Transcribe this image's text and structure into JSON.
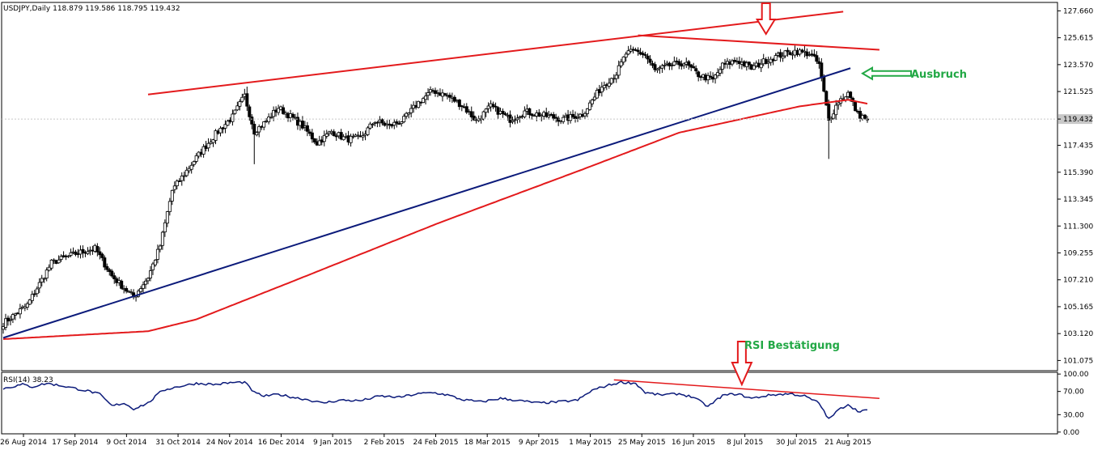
{
  "colors": {
    "background": "#ffffff",
    "frame": "#000000",
    "candle": "#000000",
    "bull_body": "#ffffff",
    "trendline": "#e31a1c",
    "channel_line": "#0b1a7a",
    "moving_average": "#e31a1c",
    "rsi_line": "#0b1a7a",
    "annotation": "#22a845",
    "arrow_red": "#e31a1c",
    "arrow_green": "#22a845",
    "price_badge": "#c8c8c8"
  },
  "chart_data": [
    {
      "type": "candlestick",
      "header": "USDJPY,Daily  118.879 119.586 118.795 119.432",
      "xlabel": "",
      "ylabel": "",
      "x_ticks": [
        "26 Aug 2014",
        "17 Sep 2014",
        "9 Oct 2014",
        "31 Oct 2014",
        "24 Nov 2014",
        "16 Dec 2014",
        "9 Jan 2015",
        "2 Feb 2015",
        "24 Feb 2015",
        "18 Mar 2015",
        "9 Apr 2015",
        "1 May 2015",
        "25 May 2015",
        "16 Jun 2015",
        "8 Jul 2015",
        "30 Jul 2015",
        "21 Aug 2015"
      ],
      "y_ticks": [
        127.66,
        125.615,
        123.57,
        121.525,
        119.432,
        117.435,
        115.39,
        113.345,
        111.3,
        109.255,
        107.21,
        105.165,
        103.12,
        101.075
      ],
      "y_tick_labels": [
        "127.660",
        "125.615",
        "123.570",
        "121.525",
        "119.432",
        "117.435",
        "115.390",
        "113.345",
        "111.300",
        "109.255",
        "107.210",
        "105.165",
        "103.120",
        "101.075"
      ],
      "current_price": 119.432,
      "ylim": [
        100.3,
        128.3
      ],
      "grid": false,
      "close_anchors": [
        [
          0,
          103.9
        ],
        [
          10,
          105.3
        ],
        [
          20,
          108.5
        ],
        [
          30,
          109.2
        ],
        [
          38,
          109.6
        ],
        [
          45,
          107.5
        ],
        [
          50,
          106.6
        ],
        [
          54,
          105.9
        ],
        [
          60,
          107.4
        ],
        [
          65,
          109.8
        ],
        [
          70,
          114.0
        ],
        [
          80,
          116.5
        ],
        [
          88,
          118.3
        ],
        [
          95,
          119.6
        ],
        [
          100,
          121.2
        ],
        [
          104,
          118.5
        ],
        [
          108,
          119.1
        ],
        [
          114,
          120.3
        ],
        [
          120,
          119.5
        ],
        [
          124,
          118.9
        ],
        [
          130,
          117.6
        ],
        [
          136,
          118.5
        ],
        [
          142,
          117.9
        ],
        [
          148,
          118.0
        ],
        [
          154,
          119.3
        ],
        [
          160,
          118.9
        ],
        [
          166,
          119.4
        ],
        [
          172,
          120.7
        ],
        [
          178,
          121.6
        ],
        [
          184,
          121.2
        ],
        [
          190,
          120.5
        ],
        [
          196,
          119.3
        ],
        [
          202,
          120.4
        ],
        [
          210,
          119.4
        ],
        [
          216,
          120.0
        ],
        [
          224,
          119.7
        ],
        [
          232,
          119.4
        ],
        [
          240,
          119.8
        ],
        [
          248,
          121.9
        ],
        [
          254,
          122.9
        ],
        [
          258,
          124.4
        ],
        [
          262,
          124.6
        ],
        [
          266,
          124.3
        ],
        [
          270,
          123.1
        ],
        [
          276,
          123.5
        ],
        [
          282,
          123.7
        ],
        [
          288,
          122.8
        ],
        [
          294,
          122.4
        ],
        [
          298,
          123.5
        ],
        [
          304,
          123.9
        ],
        [
          310,
          123.3
        ],
        [
          316,
          123.9
        ],
        [
          322,
          124.3
        ],
        [
          328,
          124.6
        ],
        [
          334,
          124.4
        ],
        [
          338,
          123.6
        ],
        [
          342,
          119.3
        ],
        [
          346,
          120.8
        ],
        [
          350,
          121.4
        ],
        [
          354,
          119.8
        ],
        [
          358,
          119.43
        ]
      ],
      "ma_anchors": [
        [
          0,
          102.7
        ],
        [
          60,
          103.3
        ],
        [
          80,
          104.2
        ],
        [
          120,
          107.1
        ],
        [
          180,
          111.5
        ],
        [
          240,
          115.6
        ],
        [
          280,
          118.4
        ],
        [
          330,
          120.4
        ],
        [
          350,
          120.9
        ],
        [
          358,
          120.6
        ]
      ],
      "lines": [
        {
          "kind": "resistance",
          "x": [
            60,
            348
          ],
          "y": [
            121.3,
            127.6
          ]
        },
        {
          "kind": "top",
          "x": [
            263,
            363
          ],
          "y": [
            125.8,
            124.7
          ]
        },
        {
          "kind": "support",
          "x": [
            0,
            351
          ],
          "y": [
            102.8,
            123.3
          ]
        }
      ],
      "annotations": [
        {
          "text": "Ausbruch",
          "arrow": "left",
          "x": 356,
          "y": 122.9
        },
        {
          "text": "",
          "arrow": "down",
          "x": 316,
          "y": 127.6
        }
      ]
    },
    {
      "type": "line",
      "header": "RSI(14) 38.23",
      "xlabel": "",
      "ylabel": "",
      "y_ticks": [
        100,
        70,
        30,
        0
      ],
      "y_tick_labels": [
        "100.00",
        "70.00",
        "30.00",
        "0.00"
      ],
      "ylim": [
        -3,
        103
      ],
      "grid": false,
      "anchors": [
        [
          0,
          75
        ],
        [
          8,
          82
        ],
        [
          12,
          78
        ],
        [
          18,
          84
        ],
        [
          24,
          80
        ],
        [
          30,
          75
        ],
        [
          36,
          70
        ],
        [
          40,
          65
        ],
        [
          45,
          45
        ],
        [
          50,
          50
        ],
        [
          54,
          40
        ],
        [
          60,
          50
        ],
        [
          66,
          72
        ],
        [
          72,
          78
        ],
        [
          80,
          84
        ],
        [
          88,
          82
        ],
        [
          94,
          85
        ],
        [
          100,
          86
        ],
        [
          104,
          68
        ],
        [
          108,
          62
        ],
        [
          114,
          65
        ],
        [
          120,
          60
        ],
        [
          126,
          56
        ],
        [
          132,
          50
        ],
        [
          140,
          55
        ],
        [
          148,
          54
        ],
        [
          156,
          62
        ],
        [
          164,
          60
        ],
        [
          172,
          66
        ],
        [
          178,
          68
        ],
        [
          184,
          64
        ],
        [
          190,
          56
        ],
        [
          198,
          52
        ],
        [
          206,
          58
        ],
        [
          214,
          54
        ],
        [
          222,
          50
        ],
        [
          230,
          52
        ],
        [
          238,
          55
        ],
        [
          244,
          72
        ],
        [
          250,
          80
        ],
        [
          256,
          86
        ],
        [
          262,
          84
        ],
        [
          266,
          68
        ],
        [
          272,
          64
        ],
        [
          280,
          66
        ],
        [
          286,
          60
        ],
        [
          292,
          44
        ],
        [
          298,
          63
        ],
        [
          304,
          66
        ],
        [
          310,
          58
        ],
        [
          318,
          64
        ],
        [
          326,
          66
        ],
        [
          332,
          62
        ],
        [
          338,
          50
        ],
        [
          342,
          22
        ],
        [
          346,
          38
        ],
        [
          350,
          48
        ],
        [
          354,
          36
        ],
        [
          358,
          38.23
        ]
      ],
      "lines": [
        {
          "kind": "divergence",
          "x": [
            253,
            363
          ],
          "y": [
            90,
            58
          ]
        }
      ],
      "annotations": [
        {
          "text": "RSI Bestätigung",
          "arrow": "down",
          "x": 306,
          "y": 98
        }
      ]
    }
  ]
}
